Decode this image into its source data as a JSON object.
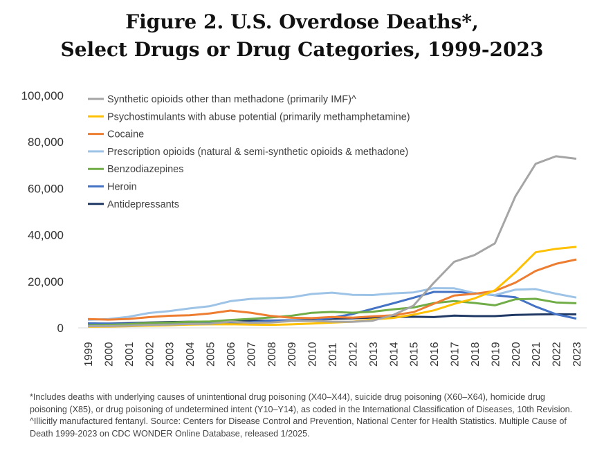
{
  "title_line1": "Figure 2. U.S. Overdose Deaths*,",
  "title_line2": "Select Drugs or Drug Categories, 1999-2023",
  "footnote": "*Includes deaths with underlying causes of unintentional drug poisoning (X40–X44), suicide drug poisoning (X60–X64), homicide drug poisoning (X85), or drug poisoning of undetermined intent (Y10–Y14), as coded in the International Classification of Diseases, 10th Revision. ^Illicitly manufactured fentanyl. Source: Centers for Disease Control and Prevention, National Center for Health Statistics. Multiple Cause of Death 1999-2023 on CDC WONDER Online Database, released 1/2025.",
  "chart_data": {
    "type": "line",
    "title": "Figure 2. U.S. Overdose Deaths*, Select Drugs or Drug Categories, 1999-2023",
    "xlabel": "",
    "ylabel": "",
    "ylim": [
      0,
      100000
    ],
    "yticks": [
      0,
      20000,
      40000,
      60000,
      80000,
      100000
    ],
    "ytick_labels": [
      "0",
      "20,000",
      "40,000",
      "60,000",
      "80,000",
      "100,000"
    ],
    "grid": false,
    "legend_position": "top-left",
    "x": [
      "1999",
      "2000",
      "2001",
      "2002",
      "2003",
      "2004",
      "2005",
      "2006",
      "2007",
      "2008",
      "2009",
      "2010",
      "2011",
      "2012",
      "2013",
      "2014",
      "2015",
      "2016",
      "2017",
      "2018",
      "2019",
      "2020",
      "2021",
      "2022",
      "2023"
    ],
    "series": [
      {
        "name": "Synthetic opioids other than methadone (primarily IMF)^",
        "color": "#a5a5a5",
        "values": [
          730,
          782,
          957,
          1295,
          1400,
          1664,
          1742,
          2707,
          2213,
          2306,
          2946,
          3007,
          2666,
          2628,
          3105,
          5544,
          9580,
          19413,
          28466,
          31335,
          36359,
          56516,
          70601,
          73838,
          72776
        ]
      },
      {
        "name": "Psychostimulants with abuse potential (primarily methamphetamine)",
        "color": "#ffc000",
        "values": [
          547,
          578,
          708,
          946,
          1118,
          1431,
          1521,
          1588,
          1430,
          1302,
          1528,
          1854,
          2266,
          2635,
          3627,
          4298,
          5716,
          7542,
          10333,
          12676,
          16167,
          23837,
          32537,
          34022,
          34855
        ]
      },
      {
        "name": "Cocaine",
        "color": "#ed7d31",
        "values": [
          3822,
          3544,
          3833,
          4599,
          5199,
          5443,
          6208,
          7448,
          6512,
          5129,
          4350,
          4183,
          4681,
          4404,
          4944,
          5415,
          6784,
          10375,
          13942,
          14666,
          15883,
          19447,
          24486,
          27569,
          29449
        ]
      },
      {
        "name": "Prescription opioids (natural & semi-synthetic opioids & methadone)",
        "color": "#9dc3e6",
        "values": [
          3442,
          3785,
          4770,
          6409,
          7225,
          8359,
          9338,
          11479,
          12466,
          12781,
          13155,
          14583,
          15140,
          14240,
          14145,
          14838,
          15281,
          17087,
          17029,
          14975,
          14139,
          16416,
          16706,
          14716,
          13026
        ]
      },
      {
        "name": "Benzodiazepines",
        "color": "#70ad47",
        "values": [
          1135,
          1298,
          1594,
          2101,
          2269,
          2597,
          2755,
          3393,
          3866,
          4500,
          5200,
          6497,
          6872,
          6524,
          6973,
          7945,
          8791,
          10684,
          11537,
          10724,
          9711,
          12290,
          12499,
          10964,
          10600
        ]
      },
      {
        "name": "Heroin",
        "color": "#4472c4",
        "values": [
          1960,
          1842,
          1779,
          2089,
          2080,
          1878,
          2009,
          2088,
          2399,
          3041,
          3278,
          3036,
          4397,
          5925,
          8257,
          10574,
          12989,
          15469,
          15482,
          14996,
          14019,
          13165,
          9173,
          5871,
          3984
        ]
      },
      {
        "name": "Antidepressants",
        "color": "#1f3864",
        "values": [
          1749,
          1803,
          2052,
          2316,
          2493,
          2652,
          2603,
          2811,
          3039,
          3168,
          3256,
          3437,
          3889,
          4115,
          4443,
          4716,
          4795,
          4642,
          5269,
          5064,
          5050,
          5597,
          5771,
          5871,
          5800
        ]
      }
    ]
  }
}
